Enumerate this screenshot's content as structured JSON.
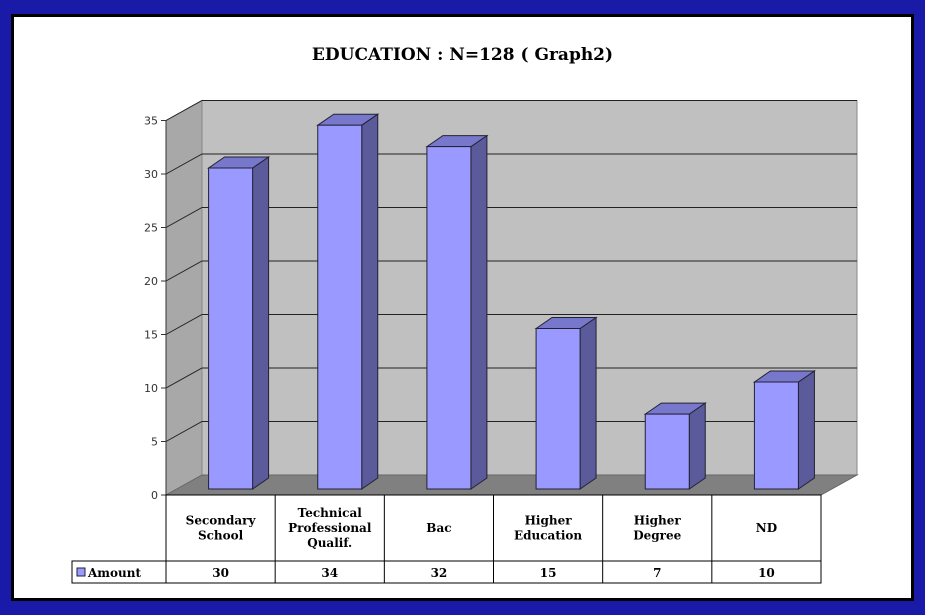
{
  "chart_data": {
    "type": "bar",
    "title": "EDUCATION  : N=128 ( Graph2)",
    "categories": [
      [
        "Secondary",
        "School"
      ],
      [
        "Technical",
        "Professional",
        "Qualif."
      ],
      [
        "Bac"
      ],
      [
        "Higher",
        "Education"
      ],
      [
        "Higher",
        "Degree"
      ],
      [
        "ND"
      ]
    ],
    "series": [
      {
        "name": "Amount",
        "values": [
          30,
          34,
          32,
          15,
          7,
          10
        ],
        "color": "#9999ff"
      }
    ],
    "table_values": [
      "30",
      "34",
      "32",
      "15",
      "7",
      "10"
    ],
    "ylim": [
      0,
      35
    ],
    "yticks": [
      0,
      5,
      10,
      15,
      20,
      25,
      30,
      35
    ],
    "grid": true,
    "legend": "data-table",
    "colors": {
      "wall": "#c0c0c0",
      "floor": "#808080",
      "bar_front": "#9999ff",
      "bar_side": "#5b5b9c",
      "bar_top": "#7777cc",
      "frame": "#1a1aa8"
    }
  }
}
